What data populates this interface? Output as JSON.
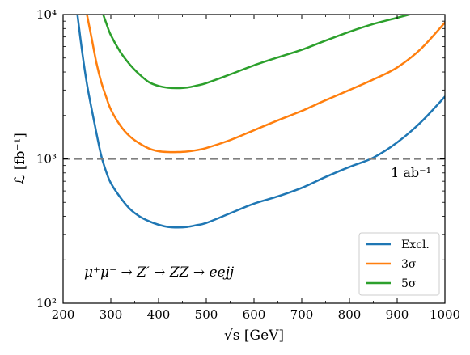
{
  "chart_data": {
    "type": "line",
    "xlabel": "√s [GeV]",
    "ylabel": "ℒ [fb⁻¹]",
    "xlim": [
      200,
      1000
    ],
    "ylim": [
      100,
      10000
    ],
    "yscale": "log",
    "x_ticks": [
      200,
      300,
      400,
      500,
      600,
      700,
      800,
      900,
      1000
    ],
    "x_tick_labels": [
      "200",
      "300",
      "400",
      "500",
      "600",
      "700",
      "800",
      "900",
      "1000"
    ],
    "y_ticks": [
      100,
      1000,
      10000
    ],
    "y_tick_labels": [
      "10²",
      "10³",
      "10⁴"
    ],
    "grid": false,
    "legend_position": "bottom-right",
    "annotation": "μ⁺μ⁻ → Z′ → ZZ → eejj",
    "reference_line": {
      "y": 1000,
      "label": "1 ab⁻¹",
      "color": "#7f7f7f",
      "style": "dashed"
    },
    "series": [
      {
        "name": "Excl.",
        "color": "#1f77b4",
        "x": [
          230,
          240,
          250,
          260,
          270,
          280,
          290,
          300,
          320,
          340,
          360,
          380,
          400,
          420,
          440,
          460,
          480,
          500,
          550,
          600,
          650,
          700,
          750,
          800,
          850,
          900,
          950,
          1000
        ],
        "y": [
          10000,
          5500,
          3300,
          2200,
          1500,
          1050,
          820,
          680,
          540,
          450,
          400,
          370,
          350,
          338,
          335,
          338,
          348,
          360,
          420,
          490,
          550,
          630,
          750,
          880,
          1020,
          1300,
          1800,
          2700
        ]
      },
      {
        "name": "3σ",
        "color": "#ff7f0e",
        "x": [
          250,
          260,
          270,
          280,
          290,
          300,
          320,
          340,
          360,
          380,
          400,
          420,
          440,
          460,
          480,
          500,
          550,
          600,
          650,
          700,
          750,
          800,
          850,
          900,
          950,
          1000
        ],
        "y": [
          10000,
          6800,
          4600,
          3400,
          2700,
          2200,
          1700,
          1430,
          1280,
          1180,
          1130,
          1115,
          1115,
          1125,
          1150,
          1190,
          1350,
          1580,
          1850,
          2150,
          2550,
          3000,
          3550,
          4300,
          5800,
          8800
        ]
      },
      {
        "name": "5σ",
        "color": "#2ca02c",
        "x": [
          284,
          290,
          300,
          320,
          340,
          360,
          380,
          400,
          420,
          440,
          460,
          480,
          500,
          550,
          600,
          650,
          700,
          750,
          800,
          850,
          900,
          950,
          980
        ],
        "y": [
          10000,
          8800,
          7200,
          5500,
          4500,
          3850,
          3400,
          3200,
          3110,
          3090,
          3120,
          3220,
          3350,
          3850,
          4450,
          5050,
          5700,
          6600,
          7600,
          8600,
          9500,
          10500,
          11000
        ]
      }
    ]
  }
}
